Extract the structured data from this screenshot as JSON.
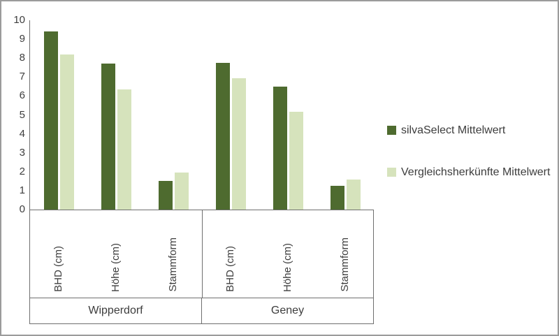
{
  "chart_data": {
    "type": "bar",
    "title": "",
    "xlabel": "",
    "ylabel": "",
    "ylim": [
      0,
      10
    ],
    "ytick_step": 1,
    "grid": false,
    "legend_position": "right",
    "groups": [
      "Wipperdorf",
      "Geney"
    ],
    "categories": [
      "BHD (cm)",
      "Höhe (cm)",
      "Stammform"
    ],
    "series": [
      {
        "name": "silvaSelect Mittelwert",
        "color": "#4e6b2f",
        "values": [
          9.4,
          7.7,
          1.5,
          7.75,
          6.5,
          1.25
        ]
      },
      {
        "name": "Vergleichsherkünfte Mittelwert",
        "color": "#d6e3bc",
        "values": [
          8.2,
          6.35,
          1.95,
          6.95,
          5.15,
          1.6
        ]
      }
    ]
  },
  "legend": {
    "items": [
      {
        "label": "silvaSelect Mittelwert"
      },
      {
        "label": "Vergleichsherkünfte Mittelwert"
      }
    ]
  }
}
